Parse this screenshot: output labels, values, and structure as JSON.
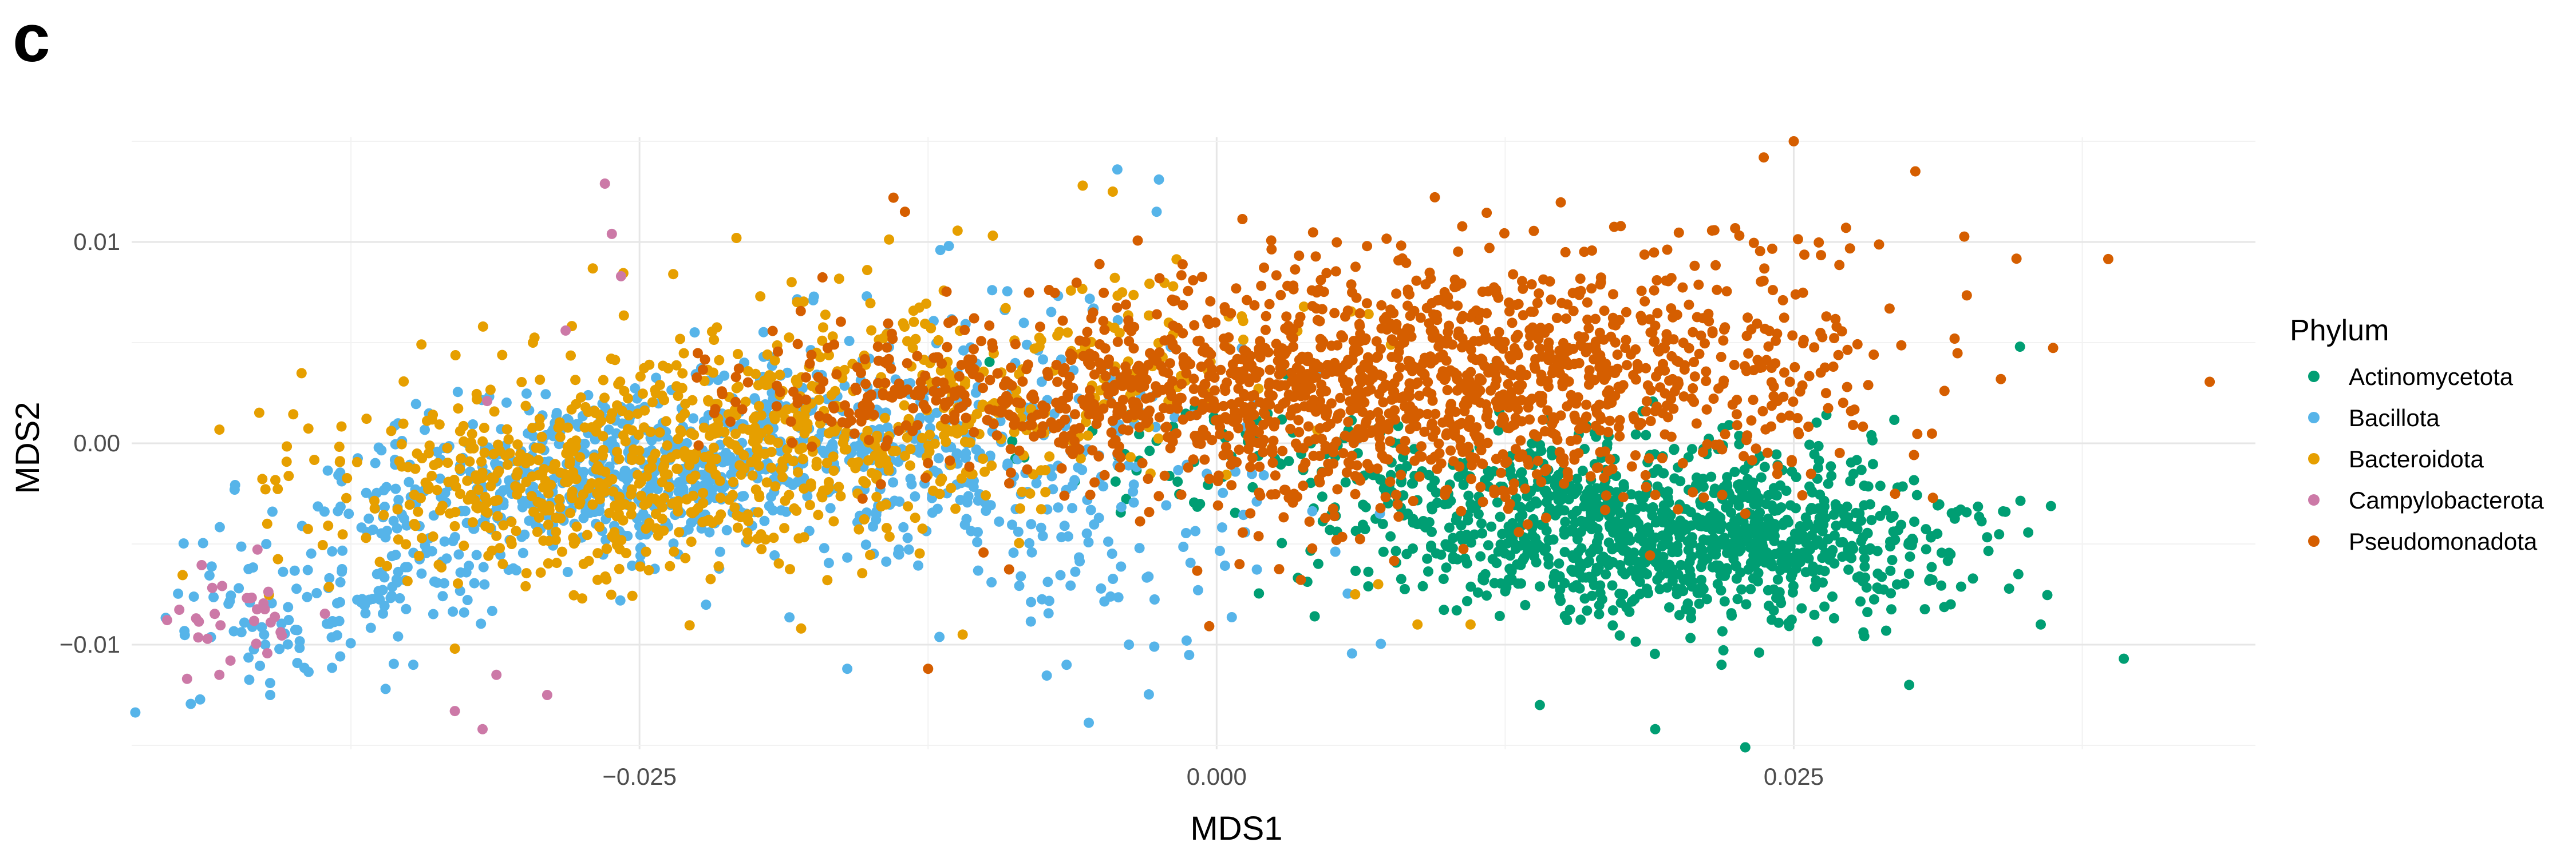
{
  "panel_label": "c",
  "chart_data": {
    "type": "scatter",
    "title": "",
    "xlabel": "MDS1",
    "ylabel": "MDS2",
    "xlim": [
      -0.047,
      0.045
    ],
    "ylim": [
      -0.0152,
      0.0152
    ],
    "x_ticks": [
      -0.025,
      0.0,
      0.025
    ],
    "x_tick_labels": [
      "−0.025",
      "0.000",
      "0.025"
    ],
    "y_ticks": [
      -0.01,
      0.0,
      0.01
    ],
    "y_tick_labels": [
      "−0.01",
      "0.00",
      "0.01"
    ],
    "grid": true,
    "legend": {
      "title": "Phylum",
      "position": "right"
    },
    "series": [
      {
        "name": "Actinomycetota",
        "color": "#009E73",
        "clusters": [
          {
            "cx": 0.021,
            "cy": -0.0045,
            "sx": 0.0055,
            "sy": 0.0022,
            "n": 900,
            "rot": -0.04
          },
          {
            "cx": 0.012,
            "cy": -0.0035,
            "sx": 0.0045,
            "sy": 0.0022,
            "n": 240,
            "rot": 0
          },
          {
            "cx": 0.001,
            "cy": -0.0005,
            "sx": 0.0045,
            "sy": 0.0015,
            "n": 70,
            "rot": 0
          }
        ],
        "points": [
          [
            0.0393,
            -0.0107
          ],
          [
            0.0348,
            0.0048
          ],
          [
            0.0229,
            -0.0151
          ],
          [
            0.019,
            -0.0142
          ],
          [
            0.014,
            -0.013
          ],
          [
            0.0357,
            -0.009
          ],
          [
            0.0318,
            -0.008
          ],
          [
            0.03,
            -0.012
          ]
        ]
      },
      {
        "name": "Bacillota",
        "color": "#56B4E9",
        "clusters": [
          {
            "cx": -0.025,
            "cy": -0.0015,
            "sx": 0.0065,
            "sy": 0.002,
            "n": 700,
            "rot": 0.13
          },
          {
            "cx": -0.038,
            "cy": -0.008,
            "sx": 0.004,
            "sy": 0.0016,
            "n": 130,
            "rot": 0.3
          },
          {
            "cx": -0.011,
            "cy": 0.001,
            "sx": 0.006,
            "sy": 0.0032,
            "n": 260,
            "rot": 0
          },
          {
            "cx": -0.006,
            "cy": -0.005,
            "sx": 0.006,
            "sy": 0.0025,
            "n": 90,
            "rot": 0
          }
        ],
        "points": [
          [
            -0.0043,
            0.0136
          ],
          [
            -0.0025,
            0.0131
          ],
          [
            -0.0026,
            0.0115
          ],
          [
            -0.0116,
            0.0098
          ],
          [
            -0.0038,
            -0.01
          ],
          [
            -0.0065,
            -0.011
          ],
          [
            -0.016,
            -0.0112
          ],
          [
            -0.0027,
            -0.0101
          ],
          [
            -0.041,
            -0.0125
          ],
          [
            -0.036,
            -0.0122
          ],
          [
            -0.0348,
            -0.011
          ],
          [
            -0.0013,
            -0.0098
          ]
        ]
      },
      {
        "name": "Bacteroidota",
        "color": "#E69F00",
        "clusters": [
          {
            "cx": -0.027,
            "cy": -0.0015,
            "sx": 0.006,
            "sy": 0.0025,
            "n": 520,
            "rot": 0.1
          },
          {
            "cx": -0.016,
            "cy": 0.001,
            "sx": 0.0055,
            "sy": 0.003,
            "n": 350,
            "rot": 0
          },
          {
            "cx": -0.004,
            "cy": 0.004,
            "sx": 0.004,
            "sy": 0.0025,
            "n": 80,
            "rot": 0
          }
        ],
        "points": [
          [
            -0.0208,
            0.0102
          ],
          [
            -0.0058,
            0.0128
          ],
          [
            -0.0045,
            0.0125
          ],
          [
            -0.033,
            -0.0102
          ],
          [
            -0.018,
            -0.0092
          ],
          [
            -0.011,
            -0.0095
          ],
          [
            0.0087,
            -0.009
          ],
          [
            0.011,
            -0.009
          ],
          [
            0.006,
            -0.0075
          ],
          [
            0.007,
            -0.007
          ]
        ]
      },
      {
        "name": "Campylobacterota",
        "color": "#CC79A7",
        "clusters": [
          {
            "cx": -0.042,
            "cy": -0.0082,
            "sx": 0.0016,
            "sy": 0.0011,
            "n": 28,
            "rot": 0
          }
        ],
        "points": [
          [
            -0.0265,
            0.0129
          ],
          [
            -0.0262,
            0.0104
          ],
          [
            -0.0258,
            0.0083
          ],
          [
            -0.0282,
            0.0056
          ],
          [
            -0.0316,
            0.0021
          ],
          [
            -0.033,
            -0.0133
          ],
          [
            -0.0318,
            -0.0142
          ],
          [
            -0.029,
            -0.0125
          ],
          [
            -0.0312,
            -0.0115
          ],
          [
            -0.0432,
            -0.0115
          ],
          [
            -0.0446,
            -0.0117
          ]
        ]
      },
      {
        "name": "Pseudomonadota",
        "color": "#D55E00",
        "clusters": [
          {
            "cx": 0.011,
            "cy": 0.003,
            "sx": 0.009,
            "sy": 0.0032,
            "n": 1300,
            "rot": 0.08
          },
          {
            "cx": -0.002,
            "cy": 0.0025,
            "sx": 0.0065,
            "sy": 0.002,
            "n": 320,
            "rot": 0
          },
          {
            "cx": -0.014,
            "cy": 0.0025,
            "sx": 0.004,
            "sy": 0.0015,
            "n": 140,
            "rot": 0
          }
        ],
        "points": [
          [
            0.027,
            0.0159
          ],
          [
            0.0276,
            0.016
          ],
          [
            0.025,
            0.015
          ],
          [
            0.0237,
            0.0142
          ],
          [
            -0.0125,
            -0.0112
          ],
          [
            -0.014,
            0.0122
          ],
          [
            -0.0135,
            0.0115
          ]
        ]
      }
    ]
  }
}
